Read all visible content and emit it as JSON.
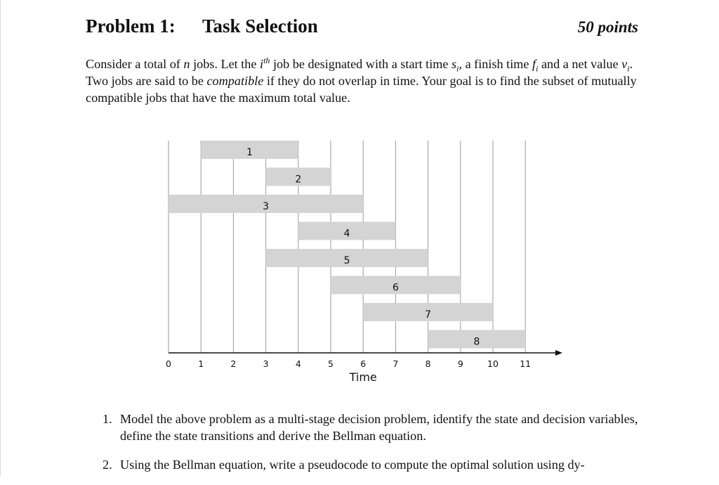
{
  "header": {
    "problem_number": "Problem 1:",
    "problem_title": "Task Selection",
    "points": "50 points"
  },
  "intro": {
    "p1": "Consider a total of ",
    "n": "n",
    "p2": " jobs. Let the ",
    "i": "i",
    "th": "th",
    "p3": " job be designated with a start time ",
    "s": "s",
    "s_sub": "i",
    "p4": ", a finish time ",
    "f": "f",
    "f_sub": "i",
    "p5": " and a net value ",
    "v": "v",
    "v_sub": "i",
    "p6": ". Two jobs are said to be ",
    "compatible": "compatible",
    "p7": " if they do not overlap in time. Your goal is to find the subset of mutually compatible jobs that have the maximum total value."
  },
  "chart_data": {
    "type": "gantt",
    "xlabel": "Time",
    "xlim": [
      0,
      11
    ],
    "ticks": [
      "0",
      "1",
      "2",
      "3",
      "4",
      "5",
      "6",
      "7",
      "8",
      "9",
      "10",
      "11"
    ],
    "jobs": [
      {
        "label": "1",
        "start": 1,
        "finish": 4
      },
      {
        "label": "2",
        "start": 3,
        "finish": 5
      },
      {
        "label": "3",
        "start": 0,
        "finish": 6
      },
      {
        "label": "4",
        "start": 4,
        "finish": 7
      },
      {
        "label": "5",
        "start": 3,
        "finish": 8
      },
      {
        "label": "6",
        "start": 5,
        "finish": 9
      },
      {
        "label": "7",
        "start": 6,
        "finish": 10
      },
      {
        "label": "8",
        "start": 8,
        "finish": 11
      }
    ],
    "bar_color": "#d4d4d4",
    "grid": true
  },
  "tasks": [
    {
      "num": "1.",
      "text": "Model the above problem as a multi-stage decision problem, identify the state and decision variables, define the state transitions and derive the Bellman equation."
    },
    {
      "num": "2.",
      "text": "Using the Bellman equation, write a pseudocode to compute the optimal solution using dy-"
    }
  ]
}
